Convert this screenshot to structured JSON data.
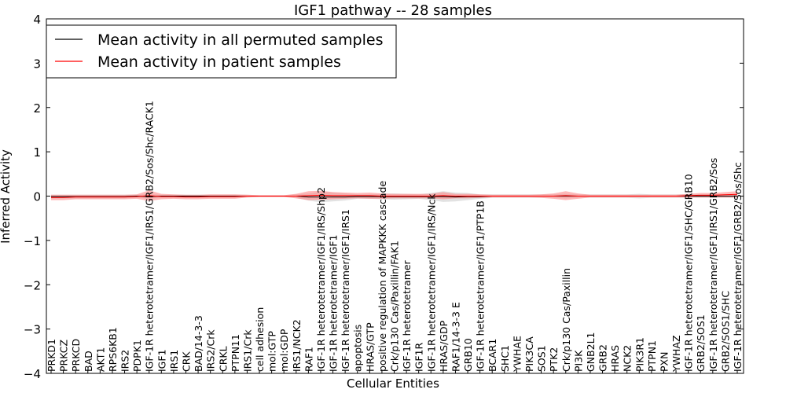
{
  "chart_data": {
    "type": "line",
    "title": "IGF1 pathway -- 28 samples",
    "xlabel": "Cellular Entities",
    "ylabel": "Inferred Activity",
    "ylim": [
      -4,
      4
    ],
    "yticks": [
      -4,
      -3,
      -2,
      -1,
      0,
      1,
      2,
      3,
      4
    ],
    "ytick_labels": [
      "−4",
      "−3",
      "−2",
      "−1",
      "0",
      "1",
      "2",
      "3",
      "4"
    ],
    "grid": false,
    "legend_position": "top-left",
    "categories": [
      "PRKD1",
      "PRKCZ",
      "PRKCD",
      "BAD",
      "AKT1",
      "RPS6KB1",
      "IRS2",
      "PDPK1",
      "IGF-1R heterotetramer/IGF1/IRS1/GRB2/Sos/Shc/RACK1",
      "IGF1",
      "IRS1",
      "CRK",
      "BAD/14-3-3",
      "IRS2/Crk",
      "CRKL",
      "PTPN11",
      "IRS1/Crk",
      "cell adhesion",
      "mol:GTP",
      "mol:GDP",
      "IRS1/NCK2",
      "RAF1",
      "IGF-1R heterotetramer/IGF1/IRS/Shp2",
      "IGF-1R heterotetramer/IGF1",
      "IGF-1R heterotetramer/IGF1/IRS1",
      "apoptosis",
      "HRAS/GTP",
      "positive regulation of MAPKKK cascade",
      "Crk/p130 Cas/Paxillin/FAK1",
      "IGF-1R heterotetramer",
      "IGF1R",
      "IGF-1R heterotetramer/IGF1/IRS/Nck",
      "HRAS/GDP",
      "RAF1/14-3-3 E",
      "GRB10",
      "IGF-1R heterotetramer/IGF1/PTP1B",
      "BCAR1",
      "SHC1",
      "YWHAE",
      "PIK3CA",
      "SOS1",
      "PTK2",
      "Crk/p130 Cas/Paxillin",
      "PI3K",
      "GNB2L1",
      "GRB2",
      "HRAS",
      "NCK2",
      "PIK3R1",
      "PTPN1",
      "PXN",
      "YWHAZ",
      "IGF-1R heterotetramer/IGF1/SHC/GRB10",
      "GRB2/SOS1",
      "IGF-1R heterotetramer/IGF1/IRS1/GRB2/Sos",
      "GRB2/SOS1/SHC",
      "IGF-1R heterotetramer/IGF1/GRB2/Sos/Shc"
    ],
    "series": [
      {
        "name": "Mean activity in all permuted samples",
        "color": "#000000",
        "band_color": "#bfbfbf",
        "values": [
          -0.01,
          -0.01,
          -0.01,
          -0.01,
          -0.01,
          -0.01,
          -0.01,
          0,
          -0.01,
          0,
          0,
          0,
          0,
          0,
          0,
          0,
          0,
          0,
          0,
          0,
          0,
          -0.02,
          -0.02,
          -0.02,
          -0.02,
          -0.01,
          -0.01,
          -0.01,
          -0.01,
          -0.01,
          -0.01,
          -0.01,
          -0.01,
          -0.02,
          -0.01,
          -0.01,
          0,
          0,
          0,
          0,
          0,
          0,
          0,
          0,
          0,
          0,
          0,
          0,
          0,
          0,
          0,
          0,
          0,
          0,
          0,
          0,
          0
        ],
        "spread": [
          0.04,
          0.04,
          0.04,
          0.04,
          0.04,
          0.04,
          0.04,
          0.03,
          0.05,
          0.03,
          0.03,
          0.03,
          0.03,
          0.03,
          0.03,
          0.03,
          0.03,
          0.02,
          0.02,
          0.02,
          0.04,
          0.08,
          0.12,
          0.1,
          0.08,
          0.05,
          0.05,
          0.06,
          0.07,
          0.06,
          0.05,
          0.08,
          0.12,
          0.1,
          0.08,
          0.05,
          0.04,
          0.04,
          0.04,
          0.04,
          0.04,
          0.04,
          0.05,
          0.04,
          0.04,
          0.04,
          0.04,
          0.04,
          0.05,
          0.04,
          0.04,
          0.04,
          0.04,
          0.04,
          0.04,
          0.04,
          0.04
        ]
      },
      {
        "name": "Mean activity in patient samples",
        "color": "#ff0000",
        "band_color": "#ff8080",
        "values": [
          -0.03,
          -0.03,
          -0.02,
          -0.02,
          -0.02,
          -0.02,
          -0.02,
          -0.01,
          0.01,
          -0.01,
          -0.01,
          -0.02,
          -0.02,
          -0.01,
          -0.01,
          -0.01,
          0,
          0,
          0,
          0,
          0,
          0.01,
          0.02,
          0.01,
          0.01,
          0.01,
          0.01,
          0,
          0,
          0,
          0,
          0,
          0.01,
          0,
          0,
          0,
          0,
          0,
          0,
          0,
          0,
          0,
          0.01,
          0,
          0,
          0,
          0,
          0,
          0,
          0,
          0,
          0,
          0.01,
          0.02,
          0.02,
          0.03,
          0.04
        ],
        "spread": [
          0.06,
          0.06,
          0.05,
          0.05,
          0.05,
          0.05,
          0.05,
          0.05,
          0.12,
          0.06,
          0.05,
          0.05,
          0.05,
          0.05,
          0.05,
          0.05,
          0.03,
          0.02,
          0.02,
          0.02,
          0.05,
          0.1,
          0.1,
          0.08,
          0.07,
          0.06,
          0.07,
          0.06,
          0.05,
          0.05,
          0.05,
          0.05,
          0.08,
          0.05,
          0.05,
          0.04,
          0.03,
          0.03,
          0.03,
          0.03,
          0.04,
          0.06,
          0.1,
          0.06,
          0.03,
          0.03,
          0.03,
          0.03,
          0.03,
          0.03,
          0.03,
          0.03,
          0.04,
          0.05,
          0.05,
          0.06,
          0.07
        ]
      }
    ]
  }
}
